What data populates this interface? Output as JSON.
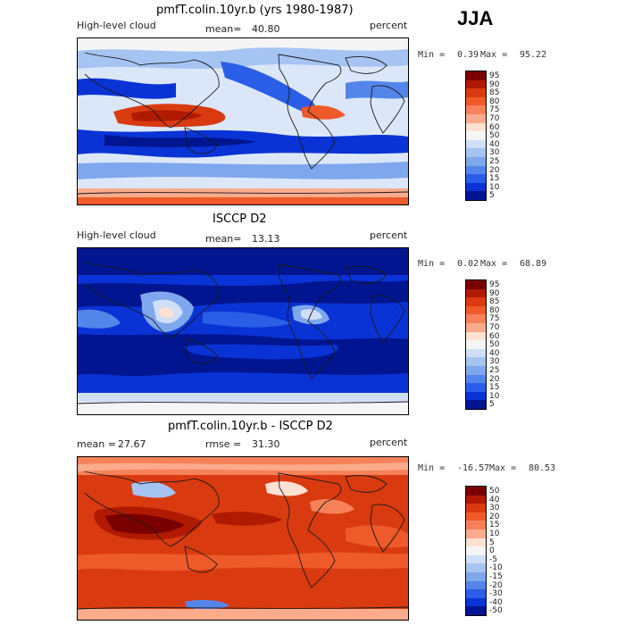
{
  "season": "JJA",
  "panels": [
    {
      "title": "pmfT.colin.10yr.b (yrs 1980-1987)",
      "left_label": "High-level cloud",
      "stat_label": "mean=",
      "stat_value": "40.80",
      "units": "percent",
      "min_label": "Min =",
      "min_value": "0.39",
      "max_label": "Max =",
      "max_value": "95.22",
      "colorbar_levels": [
        "95",
        "90",
        "85",
        "80",
        "75",
        "70",
        "60",
        "50",
        "40",
        "30",
        "25",
        "20",
        "15",
        "10",
        "5"
      ]
    },
    {
      "title": "ISCCP D2",
      "left_label": "High-level cloud",
      "stat_label": "mean=",
      "stat_value": "13.13",
      "units": "percent",
      "min_label": "Min =",
      "min_value": "0.02",
      "max_label": "Max =",
      "max_value": "68.89",
      "colorbar_levels": [
        "95",
        "90",
        "85",
        "80",
        "75",
        "70",
        "60",
        "50",
        "40",
        "30",
        "25",
        "20",
        "15",
        "10",
        "5"
      ]
    },
    {
      "title": "pmfT.colin.10yr.b - ISCCP D2",
      "left_label": "mean =",
      "left_value": "27.67",
      "stat_label": "rmse =",
      "stat_value": "31.30",
      "units": "percent",
      "min_label": "Min =",
      "min_value": "-16.57",
      "max_label": "Max =",
      "max_value": "80.53",
      "colorbar_levels": [
        "50",
        "40",
        "30",
        "20",
        "15",
        "10",
        "5",
        "0",
        "-5",
        "-10",
        "-15",
        "-20",
        "-30",
        "-40",
        "-50"
      ]
    }
  ],
  "colors": {
    "abs_scale": [
      "#7a0000",
      "#b01a00",
      "#d93a10",
      "#ee5a2a",
      "#f7825a",
      "#fbab8c",
      "#fde1d2",
      "#f5f5f5",
      "#cfdff7",
      "#a6c4f2",
      "#7fa7ee",
      "#5486ea",
      "#2a5ee6",
      "#0a33d6",
      "#00158f"
    ],
    "diff_scale": [
      "#7a0000",
      "#b01a00",
      "#d93a10",
      "#ee5a2a",
      "#f7825a",
      "#fbab8c",
      "#fde1d2",
      "#f5f5f5",
      "#cfdff7",
      "#a6c4f2",
      "#7fa7ee",
      "#5486ea",
      "#2a5ee6",
      "#0a33d6",
      "#00158f"
    ],
    "coast": "#1a1a1a"
  }
}
